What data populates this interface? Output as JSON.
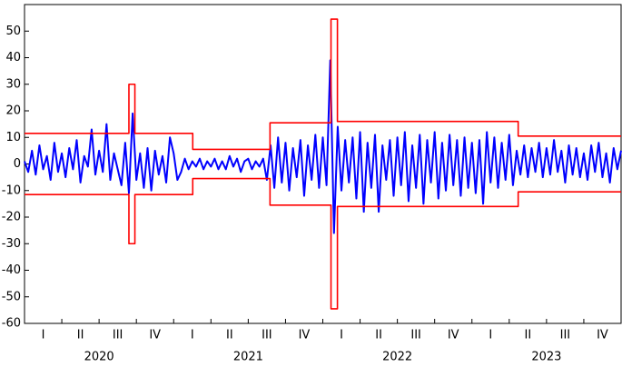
{
  "chart_data": {
    "type": "line",
    "xlim": [
      2020,
      2024
    ],
    "xticks": [
      2020,
      2020.25,
      2020.5,
      2020.75,
      2021,
      2021.25,
      2021.5,
      2021.75,
      2022,
      2022.25,
      2022.5,
      2022.75,
      2023,
      2023.25,
      2023.5,
      2023.75,
      2024
    ],
    "quarter_labels": [
      "I",
      "II",
      "III",
      "IV",
      "I",
      "II",
      "III",
      "IV",
      "I",
      "II",
      "III",
      "IV",
      "I",
      "II",
      "III",
      "IV"
    ],
    "year_labels": [
      "2020",
      "2021",
      "2022",
      "2023"
    ],
    "ylim": [
      -60,
      60
    ],
    "yticks": [
      -60,
      -50,
      -40,
      -30,
      -20,
      -10,
      0,
      10,
      20,
      30,
      40,
      50
    ],
    "grid": false,
    "series": [
      {
        "color": "#0000ff",
        "x": [
          2020,
          2020.025,
          2020.05,
          2020.075,
          2020.1,
          2020.125,
          2020.15,
          2020.175,
          2020.2,
          2020.225,
          2020.25,
          2020.275,
          2020.3,
          2020.325,
          2020.35,
          2020.375,
          2020.4,
          2020.425,
          2020.45,
          2020.475,
          2020.5,
          2020.525,
          2020.55,
          2020.575,
          2020.6,
          2020.625,
          2020.65,
          2020.675,
          2020.7,
          2020.725,
          2020.75,
          2020.775,
          2020.8,
          2020.825,
          2020.85,
          2020.875,
          2020.9,
          2020.925,
          2020.95,
          2020.975,
          2021,
          2021.025,
          2021.05,
          2021.075,
          2021.1,
          2021.125,
          2021.15,
          2021.175,
          2021.2,
          2021.225,
          2021.25,
          2021.275,
          2021.3,
          2021.325,
          2021.35,
          2021.375,
          2021.4,
          2021.425,
          2021.45,
          2021.475,
          2021.5,
          2021.525,
          2021.55,
          2021.575,
          2021.6,
          2021.625,
          2021.65,
          2021.675,
          2021.7,
          2021.725,
          2021.75,
          2021.775,
          2021.8,
          2021.825,
          2021.85,
          2021.875,
          2021.9,
          2021.925,
          2021.95,
          2021.975,
          2022,
          2022.025,
          2022.05,
          2022.075,
          2022.1,
          2022.125,
          2022.15,
          2022.175,
          2022.2,
          2022.225,
          2022.25,
          2022.275,
          2022.3,
          2022.325,
          2022.35,
          2022.375,
          2022.4,
          2022.425,
          2022.45,
          2022.475,
          2022.5,
          2022.525,
          2022.55,
          2022.575,
          2022.6,
          2022.625,
          2022.65,
          2022.675,
          2022.7,
          2022.725,
          2022.75,
          2022.775,
          2022.8,
          2022.825,
          2022.85,
          2022.875,
          2022.9,
          2022.925,
          2022.95,
          2022.975,
          2023,
          2023.025,
          2023.05,
          2023.075,
          2023.1,
          2023.125,
          2023.15,
          2023.175,
          2023.2,
          2023.225,
          2023.25,
          2023.275,
          2023.3,
          2023.325,
          2023.35,
          2023.375,
          2023.4,
          2023.425,
          2023.45,
          2023.475,
          2023.5,
          2023.525,
          2023.55,
          2023.575,
          2023.6,
          2023.625,
          2023.65,
          2023.675,
          2023.7,
          2023.725,
          2023.75,
          2023.775,
          2023.8,
          2023.825,
          2023.85,
          2023.875,
          2023.9,
          2023.925,
          2023.95,
          2023.975,
          2024
        ],
        "values": [
          1,
          -3,
          5,
          -4,
          7,
          -2,
          3,
          -6,
          8,
          -3,
          4,
          -5,
          6,
          -2,
          9,
          -7,
          3,
          -1,
          13,
          -4,
          5,
          -3,
          15,
          -6,
          4,
          -2,
          -8,
          8,
          -11,
          19,
          -6,
          4,
          -9,
          6,
          -10,
          5,
          -4,
          3,
          -7,
          10,
          4,
          -6,
          -3,
          2,
          -2,
          1,
          -1,
          2,
          -2,
          1,
          -1,
          2,
          -2,
          1,
          -2,
          3,
          -1,
          2,
          -3,
          1,
          2,
          -2,
          1,
          -1,
          2,
          -6,
          7,
          -9,
          10,
          -7,
          8,
          -10,
          6,
          -5,
          9,
          -12,
          7,
          -6,
          11,
          -9,
          10,
          -8,
          39,
          -26,
          14,
          -10,
          9,
          -7,
          10,
          -13,
          12,
          -18,
          8,
          -9,
          11,
          -18,
          7,
          -6,
          9,
          -12,
          10,
          -8,
          12,
          -14,
          7,
          -9,
          11,
          -15,
          9,
          -7,
          12,
          -13,
          8,
          -10,
          11,
          -8,
          9,
          -12,
          10,
          -9,
          8,
          -11,
          9,
          -15,
          12,
          -7,
          10,
          -9,
          8,
          -6,
          11,
          -8,
          5,
          -4,
          7,
          -5,
          6,
          -3,
          8,
          -5,
          6,
          -4,
          9,
          -3,
          5,
          -7,
          7,
          -4,
          6,
          -5,
          4,
          -6,
          7,
          -3,
          8,
          -5,
          4,
          -7,
          6,
          -2,
          5
        ]
      },
      {
        "color": "#ff0000",
        "x": [
          2020,
          2020.7,
          2020.7,
          2020.74,
          2020.74,
          2021.128,
          2021.128,
          2021.646,
          2021.646,
          2022.055,
          2022.055,
          2022.098,
          2022.098,
          2023.31,
          2023.31,
          2024
        ],
        "values": [
          11.5,
          11.5,
          30,
          30,
          11.5,
          11.5,
          5.5,
          5.5,
          15.5,
          15.5,
          54.5,
          54.5,
          16,
          16,
          10.5,
          10.5
        ]
      },
      {
        "color": "#ff0000",
        "x": [
          2020,
          2020.7,
          2020.7,
          2020.74,
          2020.74,
          2021.128,
          2021.128,
          2021.646,
          2021.646,
          2022.055,
          2022.055,
          2022.098,
          2022.098,
          2023.31,
          2023.31,
          2024
        ],
        "values": [
          -11.5,
          -11.5,
          -30,
          -30,
          -11.5,
          -11.5,
          -5.5,
          -5.5,
          -15.5,
          -15.5,
          -54.5,
          -54.5,
          -16,
          -16,
          -10.5,
          -10.5
        ]
      }
    ]
  }
}
